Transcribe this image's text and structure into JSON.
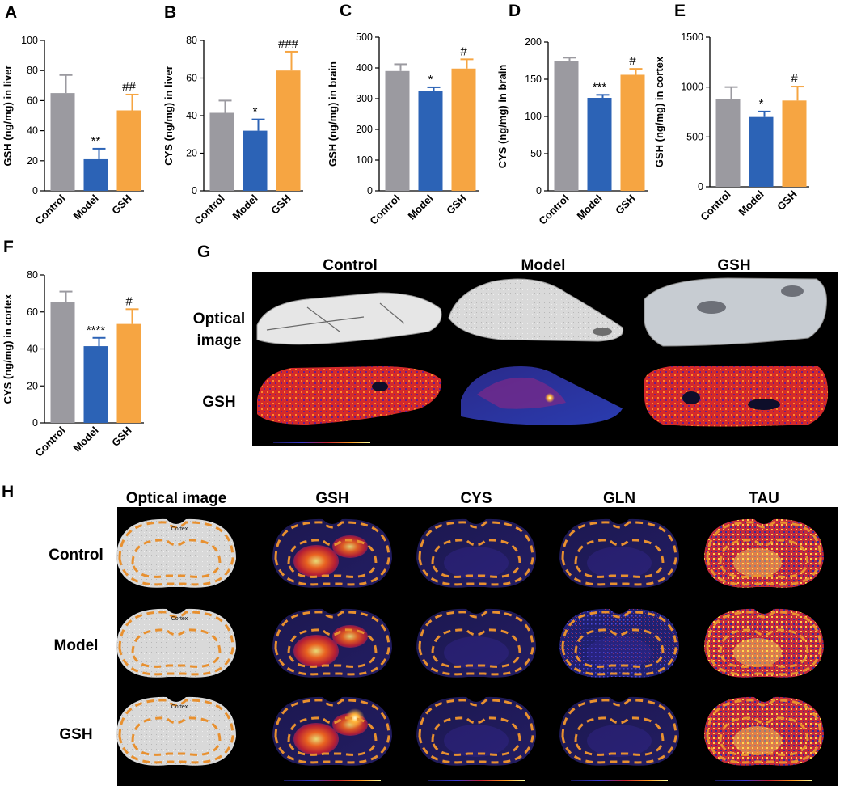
{
  "charts_meta": {
    "colors": {
      "Control": "#9b9aa0",
      "Model": "#2c63b6",
      "GSH": "#f6a542"
    }
  },
  "chart_data": [
    {
      "panel": "A",
      "type": "bar",
      "categories": [
        "Control",
        "Model",
        "GSH"
      ],
      "values": [
        65,
        21,
        53.5
      ],
      "errors": [
        12,
        7,
        10.5
      ],
      "ylabel": "GSH (ng/mg) in liver",
      "ylim": [
        0,
        100
      ],
      "yticks": [
        0,
        20,
        40,
        60,
        80,
        100
      ],
      "annotations": [
        "",
        "**",
        "##"
      ]
    },
    {
      "panel": "B",
      "type": "bar",
      "categories": [
        "Control",
        "Model",
        "GSH"
      ],
      "values": [
        41.5,
        32,
        64
      ],
      "errors": [
        6.5,
        6,
        10
      ],
      "ylabel": "CYS (ng/mg) in liver",
      "ylim": [
        0,
        80
      ],
      "yticks": [
        0,
        20,
        40,
        60,
        80
      ],
      "annotations": [
        "",
        "*",
        "###"
      ]
    },
    {
      "panel": "C",
      "type": "bar",
      "categories": [
        "Control",
        "Model",
        "GSH"
      ],
      "values": [
        390,
        325,
        398
      ],
      "errors": [
        22,
        12,
        30
      ],
      "ylabel": "GSH (ng/mg) in brain",
      "ylim": [
        0,
        500
      ],
      "yticks": [
        0,
        100,
        200,
        300,
        400,
        500
      ],
      "annotations": [
        "",
        "*",
        "#"
      ]
    },
    {
      "panel": "D",
      "type": "bar",
      "categories": [
        "Control",
        "Model",
        "GSH"
      ],
      "values": [
        174,
        125,
        156
      ],
      "errors": [
        5,
        4,
        8
      ],
      "ylabel": "CYS (ng/mg) in brain",
      "ylim": [
        0,
        200
      ],
      "yticks": [
        0,
        50,
        100,
        150,
        200
      ],
      "annotations": [
        "",
        "***",
        "#"
      ]
    },
    {
      "panel": "E",
      "type": "bar",
      "categories": [
        "Control",
        "Model",
        "GSH"
      ],
      "values": [
        880,
        700,
        865
      ],
      "errors": [
        120,
        55,
        140
      ],
      "ylabel": "GSH (ng/mg) in cortex",
      "ylim": [
        0,
        1500
      ],
      "yticks": [
        0,
        500,
        1000,
        1500
      ],
      "annotations": [
        "",
        "*",
        "#"
      ]
    },
    {
      "panel": "F",
      "type": "bar",
      "categories": [
        "Control",
        "Model",
        "GSH"
      ],
      "values": [
        65.5,
        41.5,
        53.5
      ],
      "errors": [
        5.5,
        4.5,
        8
      ],
      "ylabel": "CYS (ng/mg) in cortex",
      "ylim": [
        0,
        80
      ],
      "yticks": [
        0,
        20,
        40,
        60,
        80
      ],
      "annotations": [
        "",
        "****",
        "#"
      ]
    }
  ],
  "panelG": {
    "label": "G",
    "columns": [
      "Control",
      "Model",
      "GSH"
    ],
    "rows": [
      "Optical image",
      "GSH"
    ],
    "row1_line1": "Optical",
    "row1_line2": "image"
  },
  "panelH": {
    "label": "H",
    "columns": [
      "Optical image",
      "GSH",
      "CYS",
      "GLN",
      "TAU"
    ],
    "rows": [
      "Control",
      "Model",
      "GSH"
    ],
    "region_label": "Cortex"
  }
}
